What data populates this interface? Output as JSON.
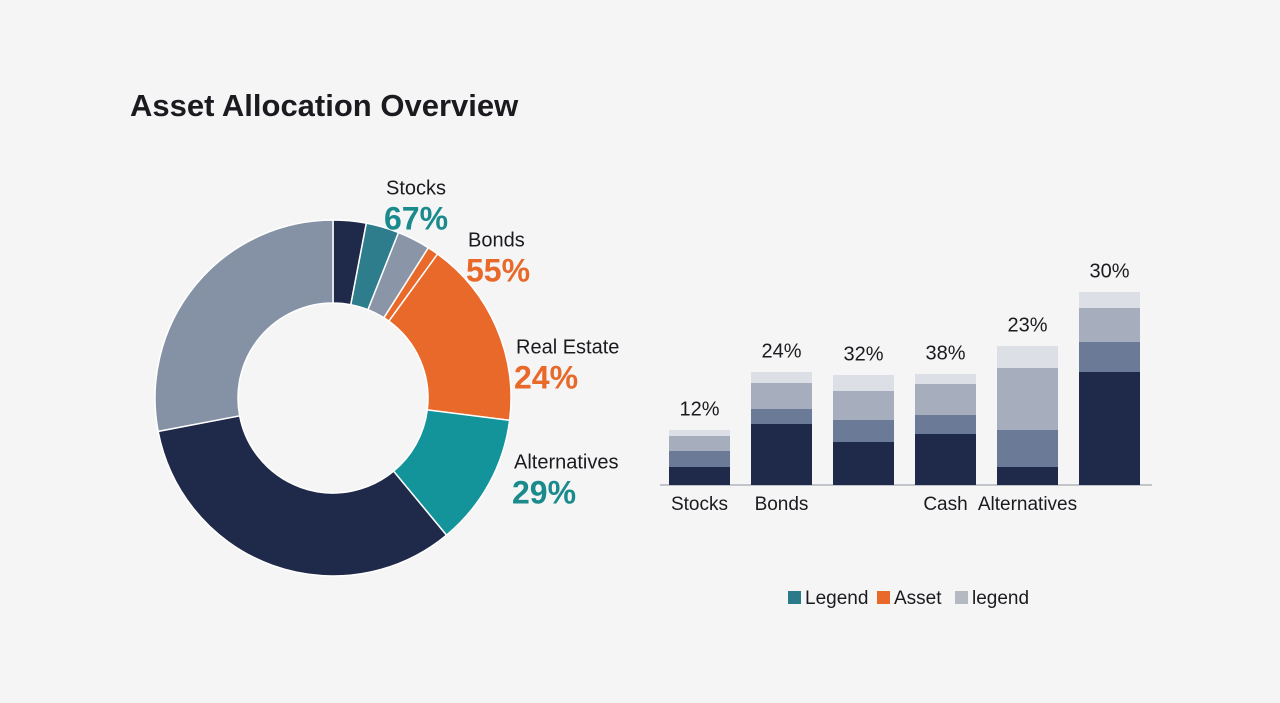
{
  "chart_data": [
    {
      "type": "pie",
      "title": "Asset Allocation Overview",
      "values": [
        3,
        3,
        3,
        1,
        17,
        12,
        33,
        28
      ],
      "colors": [
        "#1f2a4a",
        "#2e7d8c",
        "#8a95a8",
        "#e8692a",
        "#e8692a",
        "#13939a",
        "#1f2a4a",
        "#8592a6"
      ],
      "callouts": [
        {
          "label": "Stocks",
          "value_label": "67%",
          "color": "#1a8a8c"
        },
        {
          "label": "Bonds",
          "value_label": "55%",
          "color": "#e8692a"
        },
        {
          "label": "Real Estate",
          "value_label": "24%",
          "color": "#e8692a"
        },
        {
          "label": "Alternatives",
          "value_label": "29%",
          "color": "#1a8a8c"
        }
      ]
    },
    {
      "type": "bar",
      "stacked": true,
      "categories": [
        "Stocks",
        "Bonds",
        null,
        "Cash",
        "Alternatives",
        null
      ],
      "bar_labels": [
        "12%",
        "24%",
        "32%",
        "38%",
        "23%",
        "30%"
      ],
      "ylim": [
        0,
        100
      ],
      "series": [
        {
          "color": "#1f2a4a",
          "values": [
            9,
            30.5,
            21.5,
            25.5,
            9,
            56.5
          ]
        },
        {
          "color": "#6b7a96",
          "values": [
            8,
            7.5,
            11,
            9.5,
            18.5,
            15
          ]
        },
        {
          "color": "#a6adbd",
          "values": [
            7.5,
            13,
            14.5,
            15.5,
            31,
            17
          ]
        },
        {
          "color": "#dcdfe6",
          "values": [
            3,
            5.5,
            8,
            5,
            11,
            8
          ]
        }
      ],
      "legend": [
        {
          "label": "Legend",
          "color": "#2a7a8a"
        },
        {
          "label": "Asset",
          "color": "#e8692a"
        },
        {
          "label": "legend",
          "color": "#b5b9c2"
        }
      ]
    }
  ]
}
